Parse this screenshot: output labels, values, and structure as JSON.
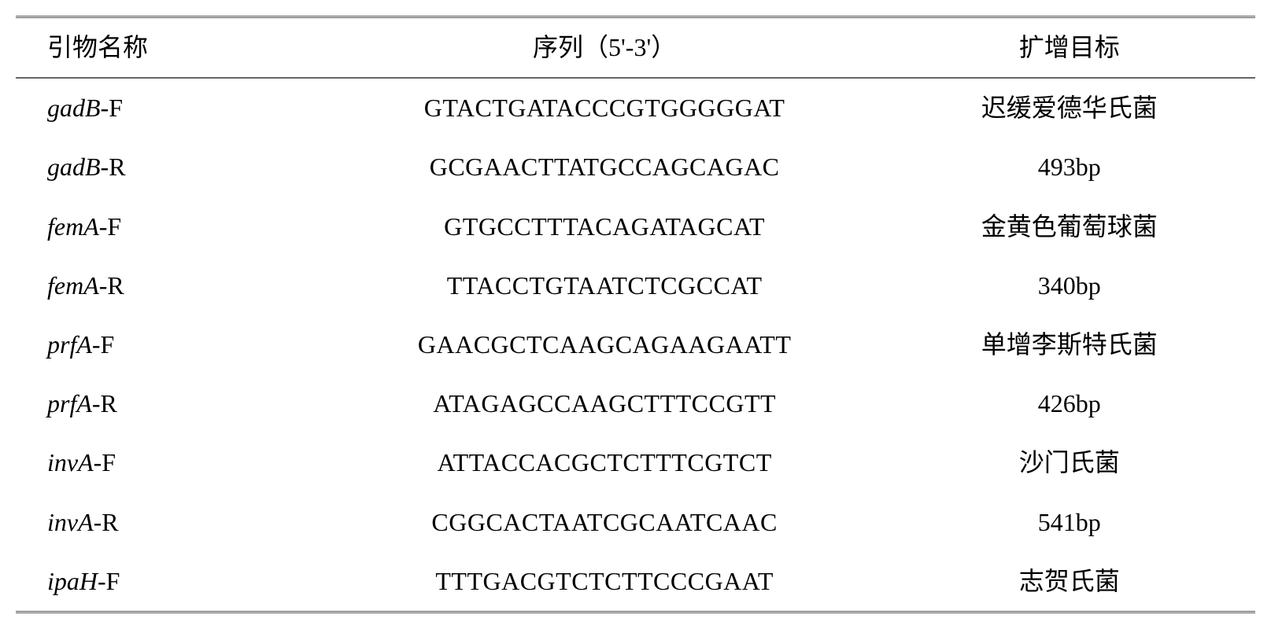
{
  "table": {
    "headers": {
      "primer_name": "引物名称",
      "sequence": "序列（5'-3'）",
      "target": "扩增目标"
    },
    "rows": [
      {
        "primer_gene": "gadB",
        "primer_suffix": "-F",
        "sequence": "GTACTGATACCCGTGGGGGAT",
        "target": "迟缓爱德华氏菌"
      },
      {
        "primer_gene": "gadB",
        "primer_suffix": "-R",
        "sequence": "GCGAACTTATGCCAGCAGAC",
        "target": "493bp"
      },
      {
        "primer_gene": "femA",
        "primer_suffix": "-F",
        "sequence": "GTGCCTTTACAGATAGCAT",
        "target": "金黄色葡萄球菌"
      },
      {
        "primer_gene": "femA",
        "primer_suffix": "-R",
        "sequence": "TTACCTGTAATCTCGCCAT",
        "target": "340bp"
      },
      {
        "primer_gene": "prfA",
        "primer_suffix": "-F",
        "sequence": "GAACGCTCAAGCAGAAGAATT",
        "target": "单增李斯特氏菌"
      },
      {
        "primer_gene": "prfA",
        "primer_suffix": "-R",
        "sequence": "ATAGAGCCAAGCTTTCCGTT",
        "target": "426bp"
      },
      {
        "primer_gene": "invA",
        "primer_suffix": "-F",
        "sequence": "ATTACCACGCTCTTTCGTCT",
        "target": "沙门氏菌"
      },
      {
        "primer_gene": "invA",
        "primer_suffix": "-R",
        "sequence": "CGGCACTAATCGCAATCAAC",
        "target": "541bp"
      },
      {
        "primer_gene": "ipaH",
        "primer_suffix": "-F",
        "sequence": "TTTGACGTCTCTTCCCGAAT",
        "target": "志贺氏菌"
      }
    ]
  }
}
